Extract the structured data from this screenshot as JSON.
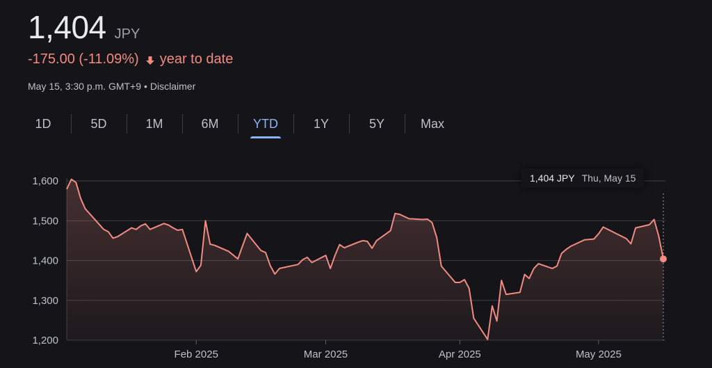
{
  "quote": {
    "price": "1,404",
    "currency": "JPY",
    "change_text": "-175.00 (-11.09%)",
    "period_text": "year to date",
    "timestamp": "May 15, 3:30 p.m. GMT+9",
    "separator": "•",
    "disclaimer": "Disclaimer"
  },
  "tabs": [
    {
      "label": "1D"
    },
    {
      "label": "5D"
    },
    {
      "label": "1M"
    },
    {
      "label": "6M"
    },
    {
      "label": "YTD",
      "active": true
    },
    {
      "label": "1Y"
    },
    {
      "label": "5Y"
    },
    {
      "label": "Max"
    }
  ],
  "tooltip": {
    "value": "1,404 JPY",
    "date": "Thu, May 15"
  },
  "colors": {
    "background": "#151519",
    "line": "#f28b82",
    "active_tab": "#8ab4f8",
    "grid": "#3c4043",
    "negative": "#f28b82"
  },
  "chart_data": {
    "type": "area",
    "title": "",
    "xlabel": "",
    "ylabel": "",
    "ylim": [
      1200,
      1600
    ],
    "yticks": [
      1600,
      1500,
      1400,
      1300,
      1200
    ],
    "ytick_labels": [
      "1,600",
      "1,500",
      "1,400",
      "1,300",
      "1,200"
    ],
    "xticks": [
      {
        "x": "2025-02-03",
        "label": "Feb 2025"
      },
      {
        "x": "2025-03-03",
        "label": "Mar 2025"
      },
      {
        "x": "2025-04-01",
        "label": "Apr 2025"
      },
      {
        "x": "2025-05-01",
        "label": "May 2025"
      }
    ],
    "grid": true,
    "series": [
      {
        "values": [
          [
            "2025-01-06",
            1579
          ],
          [
            "2025-01-07",
            1604
          ],
          [
            "2025-01-08",
            1596
          ],
          [
            "2025-01-09",
            1556
          ],
          [
            "2025-01-10",
            1530
          ],
          [
            "2025-01-14",
            1478
          ],
          [
            "2025-01-15",
            1472
          ],
          [
            "2025-01-16",
            1456
          ],
          [
            "2025-01-17",
            1460
          ],
          [
            "2025-01-20",
            1482
          ],
          [
            "2025-01-21",
            1478
          ],
          [
            "2025-01-22",
            1487
          ],
          [
            "2025-01-23",
            1492
          ],
          [
            "2025-01-24",
            1478
          ],
          [
            "2025-01-27",
            1493
          ],
          [
            "2025-01-28",
            1489
          ],
          [
            "2025-01-29",
            1482
          ],
          [
            "2025-01-30",
            1476
          ],
          [
            "2025-01-31",
            1478
          ],
          [
            "2025-02-03",
            1372
          ],
          [
            "2025-02-04",
            1388
          ],
          [
            "2025-02-05",
            1500
          ],
          [
            "2025-02-06",
            1441
          ],
          [
            "2025-02-07",
            1438
          ],
          [
            "2025-02-10",
            1423
          ],
          [
            "2025-02-12",
            1404
          ],
          [
            "2025-02-13",
            1436
          ],
          [
            "2025-02-14",
            1468
          ],
          [
            "2025-02-17",
            1425
          ],
          [
            "2025-02-18",
            1420
          ],
          [
            "2025-02-19",
            1387
          ],
          [
            "2025-02-20",
            1366
          ],
          [
            "2025-02-21",
            1380
          ],
          [
            "2025-02-25",
            1390
          ],
          [
            "2025-02-26",
            1402
          ],
          [
            "2025-02-27",
            1408
          ],
          [
            "2025-02-28",
            1395
          ],
          [
            "2025-03-03",
            1413
          ],
          [
            "2025-03-04",
            1380
          ],
          [
            "2025-03-05",
            1413
          ],
          [
            "2025-03-06",
            1440
          ],
          [
            "2025-03-07",
            1432
          ],
          [
            "2025-03-10",
            1446
          ],
          [
            "2025-03-11",
            1450
          ],
          [
            "2025-03-12",
            1448
          ],
          [
            "2025-03-13",
            1431
          ],
          [
            "2025-03-14",
            1450
          ],
          [
            "2025-03-17",
            1475
          ],
          [
            "2025-03-18",
            1518
          ],
          [
            "2025-03-19",
            1516
          ],
          [
            "2025-03-21",
            1505
          ],
          [
            "2025-03-24",
            1503
          ],
          [
            "2025-03-25",
            1504
          ],
          [
            "2025-03-26",
            1495
          ],
          [
            "2025-03-27",
            1458
          ],
          [
            "2025-03-28",
            1386
          ],
          [
            "2025-03-31",
            1345
          ],
          [
            "2025-04-01",
            1345
          ],
          [
            "2025-04-02",
            1352
          ],
          [
            "2025-04-03",
            1330
          ],
          [
            "2025-04-04",
            1255
          ],
          [
            "2025-04-07",
            1202
          ],
          [
            "2025-04-08",
            1286
          ],
          [
            "2025-04-09",
            1248
          ],
          [
            "2025-04-10",
            1350
          ],
          [
            "2025-04-11",
            1315
          ],
          [
            "2025-04-14",
            1320
          ],
          [
            "2025-04-15",
            1365
          ],
          [
            "2025-04-16",
            1355
          ],
          [
            "2025-04-17",
            1380
          ],
          [
            "2025-04-18",
            1392
          ],
          [
            "2025-04-21",
            1380
          ],
          [
            "2025-04-22",
            1386
          ],
          [
            "2025-04-23",
            1418
          ],
          [
            "2025-04-24",
            1428
          ],
          [
            "2025-04-25",
            1436
          ],
          [
            "2025-04-28",
            1452
          ],
          [
            "2025-04-30",
            1454
          ],
          [
            "2025-05-01",
            1467
          ],
          [
            "2025-05-02",
            1484
          ],
          [
            "2025-05-07",
            1455
          ],
          [
            "2025-05-08",
            1442
          ],
          [
            "2025-05-09",
            1482
          ],
          [
            "2025-05-12",
            1490
          ],
          [
            "2025-05-13",
            1503
          ],
          [
            "2025-05-14",
            1462
          ],
          [
            "2025-05-15",
            1404
          ]
        ]
      }
    ]
  }
}
